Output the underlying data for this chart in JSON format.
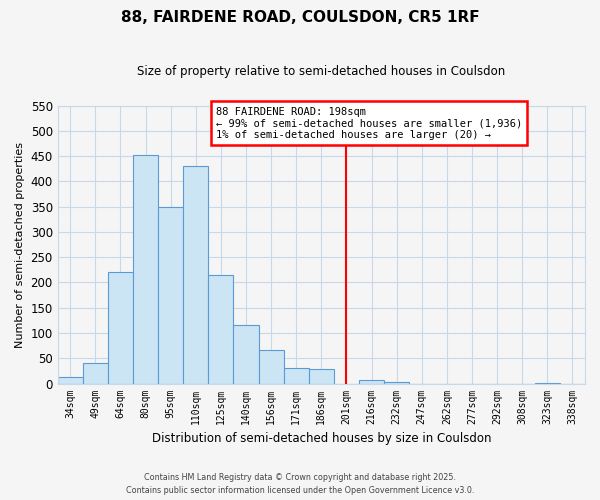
{
  "title": "88, FAIRDENE ROAD, COULSDON, CR5 1RF",
  "subtitle": "Size of property relative to semi-detached houses in Coulsdon",
  "xlabel": "Distribution of semi-detached houses by size in Coulsdon",
  "ylabel": "Number of semi-detached properties",
  "bin_labels": [
    "34sqm",
    "49sqm",
    "64sqm",
    "80sqm",
    "95sqm",
    "110sqm",
    "125sqm",
    "140sqm",
    "156sqm",
    "171sqm",
    "186sqm",
    "201sqm",
    "216sqm",
    "232sqm",
    "247sqm",
    "262sqm",
    "277sqm",
    "292sqm",
    "308sqm",
    "323sqm",
    "338sqm"
  ],
  "bar_heights": [
    12,
    40,
    220,
    453,
    350,
    430,
    215,
    115,
    67,
    30,
    28,
    0,
    8,
    4,
    0,
    0,
    0,
    0,
    0,
    1,
    0
  ],
  "bar_color": "#cce5f5",
  "bar_edge_color": "#5b9bd5",
  "line_color": "red",
  "ylim": [
    0,
    550
  ],
  "yticks": [
    0,
    50,
    100,
    150,
    200,
    250,
    300,
    350,
    400,
    450,
    500,
    550
  ],
  "annotation_title": "88 FAIRDENE ROAD: 198sqm",
  "annotation_line1": "← 99% of semi-detached houses are smaller (1,936)",
  "annotation_line2": "1% of semi-detached houses are larger (20) →",
  "footer_line1": "Contains HM Land Registry data © Crown copyright and database right 2025.",
  "footer_line2": "Contains public sector information licensed under the Open Government Licence v3.0.",
  "background_color": "#f5f5f5",
  "grid_color": "#c8d8e8"
}
